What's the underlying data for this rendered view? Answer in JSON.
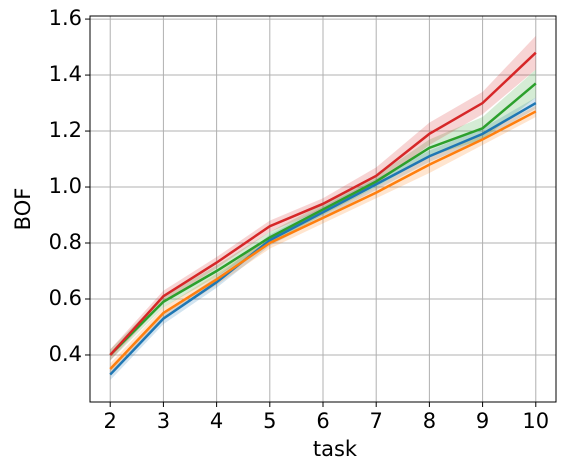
{
  "chart_data": {
    "type": "line",
    "x_label": "task",
    "y_label": "BOF",
    "x": [
      2,
      3,
      4,
      5,
      6,
      7,
      8,
      9,
      10
    ],
    "series": [
      {
        "color": "#1f77b4",
        "values": [
          0.33,
          0.53,
          0.66,
          0.81,
          0.91,
          1.01,
          1.11,
          1.19,
          1.3
        ],
        "spread": [
          0.02,
          0.02,
          0.02,
          0.02,
          0.02,
          0.02,
          0.02,
          0.02,
          0.02
        ]
      },
      {
        "color": "#ff7f0e",
        "values": [
          0.35,
          0.55,
          0.67,
          0.8,
          0.89,
          0.98,
          1.08,
          1.17,
          1.27
        ],
        "spread": [
          0.02,
          0.02,
          0.02,
          0.02,
          0.02,
          0.02,
          0.03,
          0.02,
          0.02
        ]
      },
      {
        "color": "#2ca02c",
        "values": [
          0.4,
          0.59,
          0.7,
          0.82,
          0.92,
          1.02,
          1.14,
          1.21,
          1.37
        ],
        "spread": [
          0.02,
          0.02,
          0.02,
          0.02,
          0.02,
          0.02,
          0.03,
          0.04,
          0.05
        ]
      },
      {
        "color": "#d62728",
        "values": [
          0.4,
          0.61,
          0.73,
          0.86,
          0.94,
          1.04,
          1.19,
          1.3,
          1.48
        ],
        "spread": [
          0.02,
          0.02,
          0.02,
          0.02,
          0.02,
          0.03,
          0.04,
          0.04,
          0.06
        ]
      }
    ],
    "xlim": [
      1.62,
      10.38
    ],
    "ylim": [
      0.232,
      1.611
    ],
    "xticks": [
      2,
      3,
      4,
      5,
      6,
      7,
      8,
      9,
      10
    ],
    "yticks": [
      {
        "value": 0.4,
        "label": "0.4"
      },
      {
        "value": 0.6,
        "label": "0.6"
      },
      {
        "value": 0.8,
        "label": "0.8"
      },
      {
        "value": 1.0,
        "label": "1.0"
      },
      {
        "value": 1.2,
        "label": "1.2"
      },
      {
        "value": 1.4,
        "label": "1.4"
      },
      {
        "value": 1.6,
        "label": "1.6"
      }
    ],
    "grid": true
  }
}
